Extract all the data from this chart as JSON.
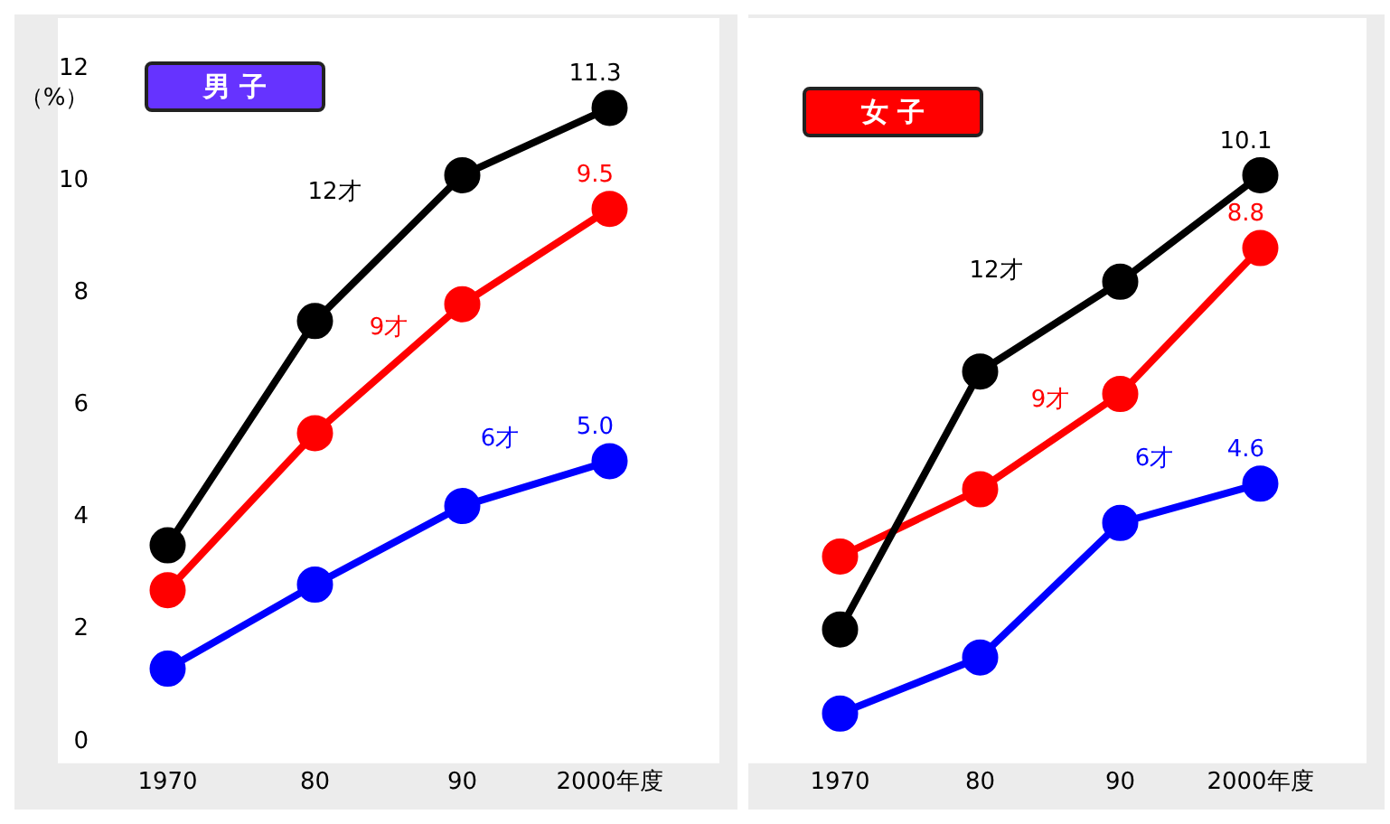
{
  "chart_data": [
    {
      "type": "line",
      "title": "男 子",
      "ylabel": "（%）",
      "categories": [
        "1970",
        "80",
        "90",
        "2000年度"
      ],
      "ylim": [
        0,
        12
      ],
      "yticks": [
        0,
        2,
        4,
        6,
        8,
        10,
        12
      ],
      "grid": false,
      "legend": false,
      "marker": "circle",
      "line_style": "solid",
      "series": [
        {
          "name": "12才",
          "color": "#000000",
          "values": [
            3.5,
            7.5,
            10.1,
            11.3
          ],
          "value_labels": [
            null,
            null,
            null,
            "11.3"
          ]
        },
        {
          "name": "9才",
          "color": "#ff0000",
          "values": [
            2.7,
            5.5,
            7.8,
            9.5
          ],
          "value_labels": [
            null,
            null,
            null,
            "9.5"
          ]
        },
        {
          "name": "6才",
          "color": "#0000ff",
          "values": [
            1.3,
            2.8,
            4.2,
            5.0
          ],
          "value_labels": [
            null,
            null,
            null,
            "5.0"
          ]
        }
      ]
    },
    {
      "type": "line",
      "title": "女 子",
      "categories": [
        "1970",
        "80",
        "90",
        "2000年度"
      ],
      "ylim": [
        0,
        12
      ],
      "yticks": [
        0,
        2,
        4,
        6,
        8,
        10,
        12
      ],
      "tick_labels": "x",
      "grid": false,
      "legend": false,
      "marker": "circle",
      "line_style": "solid",
      "series": [
        {
          "name": "12才",
          "color": "#000000",
          "values": [
            2.0,
            6.6,
            8.2,
            10.1
          ],
          "value_labels": [
            null,
            null,
            null,
            "10.1"
          ]
        },
        {
          "name": "9才",
          "color": "#ff0000",
          "values": [
            3.3,
            4.5,
            6.2,
            8.8
          ],
          "value_labels": [
            null,
            null,
            null,
            "8.8"
          ]
        },
        {
          "name": "6才",
          "color": "#0000ff",
          "values": [
            0.5,
            1.5,
            3.9,
            4.6
          ],
          "value_labels": [
            null,
            null,
            null,
            "4.6"
          ]
        }
      ]
    }
  ]
}
